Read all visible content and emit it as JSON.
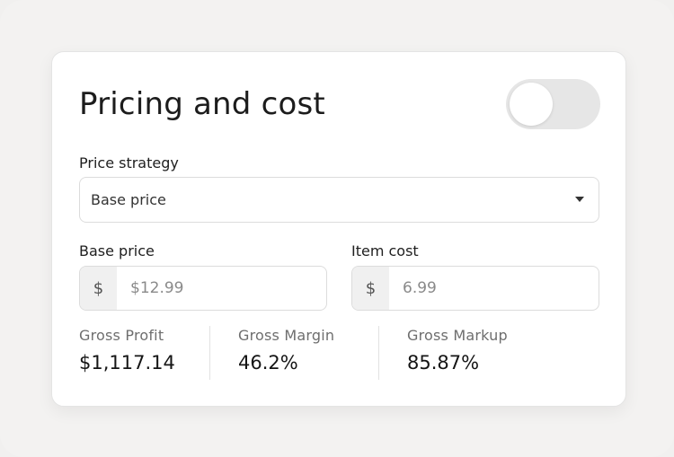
{
  "card": {
    "title": "Pricing and cost",
    "toggle": {
      "on": false
    }
  },
  "price_strategy": {
    "label": "Price strategy",
    "selected": "Base price"
  },
  "base_price": {
    "label": "Base price",
    "prefix": "$",
    "placeholder": "$12.99"
  },
  "item_cost": {
    "label": "Item cost",
    "prefix": "$",
    "placeholder": "6.99"
  },
  "stats": [
    {
      "label": "Gross Profit",
      "value": "$1,117.14"
    },
    {
      "label": "Gross Margin",
      "value": "46.2%"
    },
    {
      "label": "Gross Markup",
      "value": "85.87%"
    }
  ],
  "colors": {
    "background": "#f1f0ef",
    "card": "#ffffff",
    "toggle_track": "#e6e6e6",
    "input_border": "#dcdcdc",
    "prefix_bg": "#f0f0f0"
  },
  "icons": {
    "select_caret": "caret-down-icon"
  }
}
